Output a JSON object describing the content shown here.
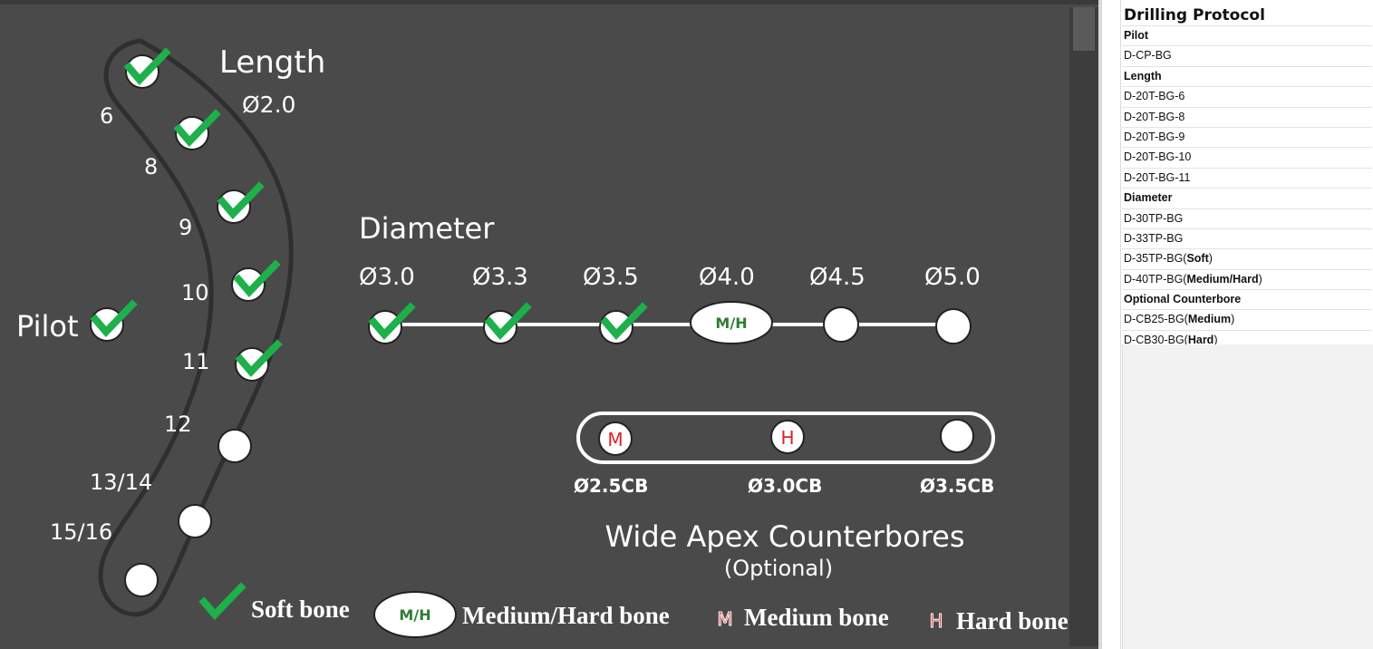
{
  "diagram": {
    "length_title": "Length",
    "length_subtitle": "Ø2.0",
    "length_labels": [
      "6",
      "8",
      "9",
      "10",
      "11",
      "12",
      "13/14",
      "15/16"
    ],
    "pilot_label": "Pilot",
    "diameter_title": "Diameter",
    "diameter_labels": [
      "Ø3.0",
      "Ø3.3",
      "Ø3.5",
      "Ø4.0",
      "Ø4.5",
      "Ø5.0"
    ],
    "mh_badge": "M/H",
    "counterbore_labels": [
      "Ø2.5CB",
      "Ø3.0CB",
      "Ø3.5CB"
    ],
    "counterbore_marks": [
      "M",
      "H"
    ],
    "counterbore_title": "Wide Apex Counterbores",
    "counterbore_subtitle": "(Optional)"
  },
  "legend": {
    "soft": "Soft bone",
    "mh_badge": "M/H",
    "mh": "Medium/Hard bone",
    "medium_mark": "M",
    "medium": "Medium bone",
    "hard_mark": "H",
    "hard": "Hard bone"
  },
  "protocol": {
    "title": "Drilling Protocol",
    "pilot_header": "Pilot",
    "pilot_items": [
      "D-CP-BG"
    ],
    "length_header": "Length",
    "length_items": [
      "D-20T-BG-6",
      "D-20T-BG-8",
      "D-20T-BG-9",
      "D-20T-BG-10",
      "D-20T-BG-11"
    ],
    "diameter_header": "Diameter",
    "diameter_items": [
      "D-30TP-BG",
      "D-33TP-BG"
    ],
    "d35_prefix": "D-35TP-BG(",
    "d35_bold": "Soft",
    "d40_prefix": "D-40TP-BG(",
    "d40_bold": "Medium/Hard",
    "close_paren": ")",
    "counterbore_header": "Optional Counterbore",
    "cb25_prefix": "D-CB25-BG(",
    "cb25_bold": "Medium",
    "cb30_prefix": "D-CB30-BG(",
    "cb30_bold": "Hard"
  },
  "colors": {
    "panel": "#4a4a4a",
    "check": "#1db04b",
    "mark_red": "#e0202a",
    "mh_text": "#2e7d32"
  }
}
